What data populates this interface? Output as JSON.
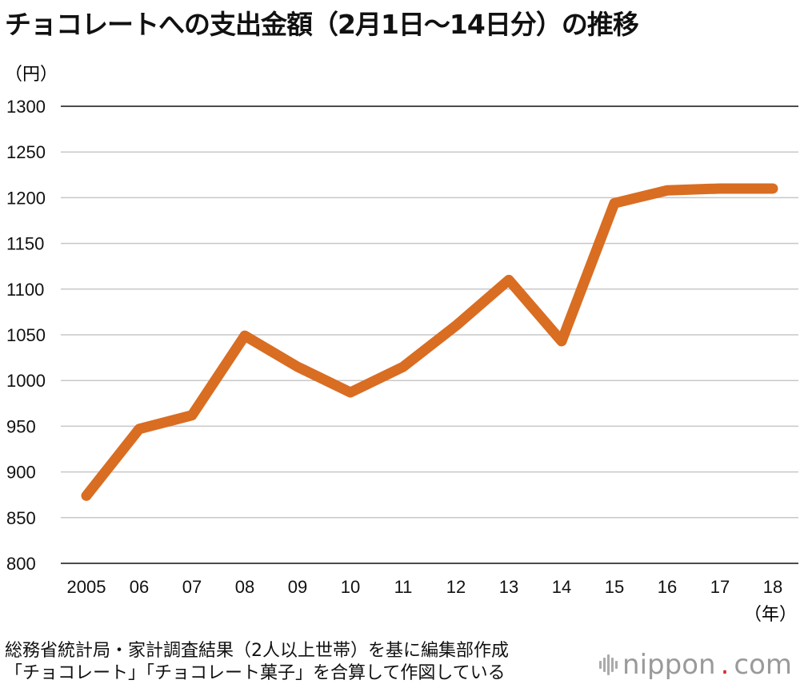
{
  "title": "チョコレートへの支出金額（2月1日〜14日分）の推移",
  "chart_data": {
    "type": "line",
    "ylabel": "（円）",
    "xlabel": "（年）",
    "ylim": [
      800,
      1300
    ],
    "yticks": [
      800,
      850,
      900,
      950,
      1000,
      1050,
      1100,
      1150,
      1200,
      1250,
      1300
    ],
    "categories": [
      "2005",
      "06",
      "07",
      "08",
      "09",
      "10",
      "11",
      "12",
      "13",
      "14",
      "15",
      "16",
      "17",
      "18"
    ],
    "series": [
      {
        "values": [
          874,
          947,
          962,
          1049,
          1015,
          987,
          1015,
          1060,
          1110,
          1043,
          1194,
          1208,
          1210,
          1210
        ]
      }
    ],
    "grid": true,
    "line_color": "#d96d22"
  },
  "notes": {
    "source": "総務省統計局・家計調査結果（2人以上世帯）を基に編集部作成",
    "method": "「チョコレート」「チョコレート菓子」を合算して作図している"
  },
  "logo": {
    "name": "nippon",
    "dot": ".",
    "suffix": "com"
  }
}
